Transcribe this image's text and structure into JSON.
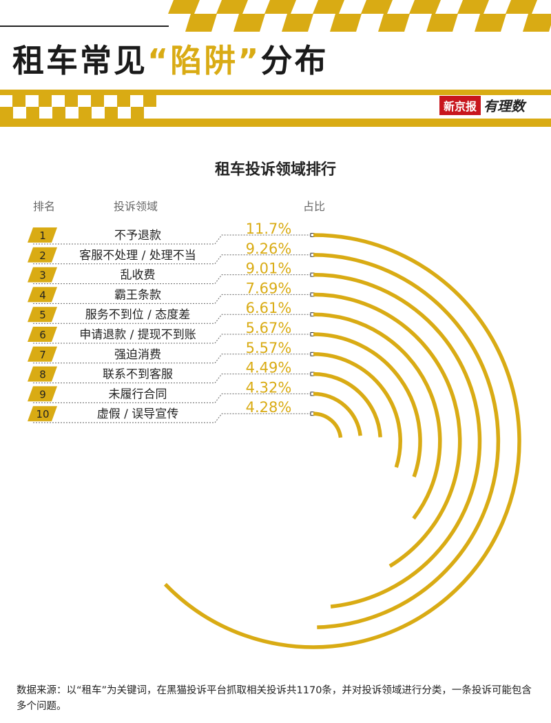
{
  "page_title": {
    "pre": "租车常见",
    "highlight": "“陷阱”",
    "post": "分布"
  },
  "brand": {
    "name": "新京报",
    "column": "有理数"
  },
  "colors": {
    "accent": "#d9ab14",
    "text": "#222222",
    "brand_red": "#c8161d"
  },
  "chart_data": {
    "type": "bar",
    "layout": "radial-arcs",
    "title": "租车投诉领域排行",
    "columns": {
      "rank": "排名",
      "category": "投诉领域",
      "value": "占比"
    },
    "categories": [
      "不予退款",
      "客服不处理 / 处理不当",
      "乱收费",
      "霸王条款",
      "服务不到位 / 态度差",
      "申请退款 / 提现不到账",
      "强迫消费",
      "联系不到客服",
      "未履行合同",
      "虚假 / 误导宣传"
    ],
    "ranks": [
      "1",
      "2",
      "3",
      "4",
      "5",
      "6",
      "7",
      "8",
      "9",
      "10"
    ],
    "values": [
      11.7,
      9.26,
      9.01,
      7.69,
      6.61,
      5.67,
      5.57,
      4.49,
      4.32,
      4.28
    ],
    "value_labels": [
      "11.7%",
      "9.26%",
      "9.01%",
      "7.69%",
      "6.61%",
      "5.67%",
      "5.57%",
      "4.49%",
      "4.32%",
      "4.28%"
    ]
  },
  "footnote": "数据来源：以“租车”为关键词，在黑猫投诉平台抓取相关投诉共1170条，并对投诉领域进行分类，一条投诉可能包含多个问题。"
}
